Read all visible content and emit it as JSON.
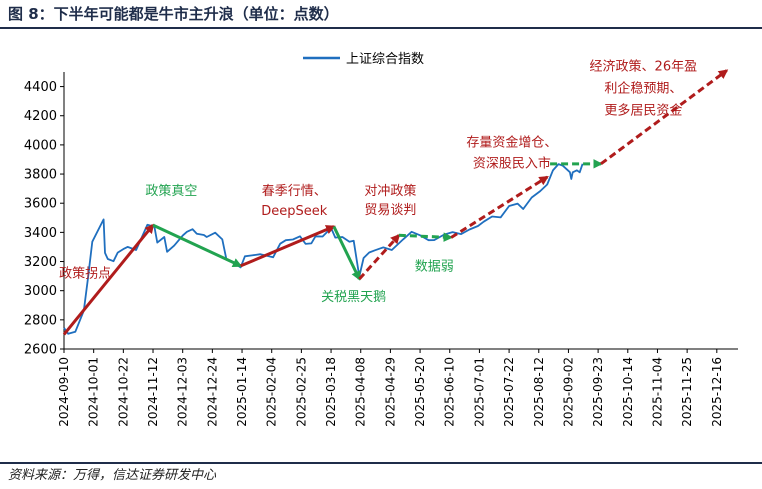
{
  "header": {
    "title": "图 8：下半年可能都是牛市主升浪（单位：点数）"
  },
  "footer": {
    "source": "资料来源：万得，信达证券研发中心"
  },
  "colors": {
    "line": "#1f6fbf",
    "red": "#b01c1c",
    "green": "#22a350",
    "text": "#000000",
    "navy": "#1f2d4a"
  },
  "chart_data": {
    "type": "line",
    "series": [
      {
        "name": "上证综合指数"
      }
    ],
    "legend_position": "top-center",
    "grid": false,
    "y_axis": {
      "ylim": [
        2600,
        4500
      ],
      "ticks": [
        2600,
        2800,
        3000,
        3200,
        3400,
        3600,
        3800,
        4000,
        4200,
        4400
      ]
    },
    "x_axis": {
      "ticks": [
        "2024-09-10",
        "2024-10-01",
        "2024-10-22",
        "2024-11-12",
        "2024-12-03",
        "2024-12-24",
        "2025-01-14",
        "2025-02-04",
        "2025-02-25",
        "2025-03-18",
        "2025-04-08",
        "2025-04-29",
        "2025-05-20",
        "2025-06-10",
        "2025-07-01",
        "2025-07-22",
        "2025-08-12",
        "2025-09-02",
        "2025-09-23",
        "2025-10-14",
        "2025-11-04",
        "2025-11-25",
        "2025-12-16"
      ]
    },
    "index_values": [
      [
        "2024-09-10",
        2745
      ],
      [
        "2024-09-13",
        2704
      ],
      [
        "2024-09-18",
        2718
      ],
      [
        "2024-09-24",
        2863
      ],
      [
        "2024-09-27",
        3087
      ],
      [
        "2024-09-30",
        3336
      ],
      [
        "2024-10-08",
        3489
      ],
      [
        "2024-10-09",
        3259
      ],
      [
        "2024-10-11",
        3217
      ],
      [
        "2024-10-15",
        3202
      ],
      [
        "2024-10-18",
        3261
      ],
      [
        "2024-10-22",
        3285
      ],
      [
        "2024-10-25",
        3300
      ],
      [
        "2024-10-31",
        3279
      ],
      [
        "2024-11-05",
        3386
      ],
      [
        "2024-11-08",
        3452
      ],
      [
        "2024-11-13",
        3439
      ],
      [
        "2024-11-15",
        3330
      ],
      [
        "2024-11-20",
        3368
      ],
      [
        "2024-11-22",
        3267
      ],
      [
        "2024-11-27",
        3309
      ],
      [
        "2024-12-03",
        3378
      ],
      [
        "2024-12-06",
        3404
      ],
      [
        "2024-12-10",
        3422
      ],
      [
        "2024-12-13",
        3391
      ],
      [
        "2024-12-18",
        3382
      ],
      [
        "2024-12-20",
        3368
      ],
      [
        "2024-12-26",
        3398
      ],
      [
        "2024-12-31",
        3352
      ],
      [
        "2025-01-03",
        3212
      ],
      [
        "2025-01-06",
        3206
      ],
      [
        "2025-01-13",
        3160
      ],
      [
        "2025-01-16",
        3236
      ],
      [
        "2025-01-21",
        3242
      ],
      [
        "2025-01-27",
        3250
      ],
      [
        "2025-02-05",
        3229
      ],
      [
        "2025-02-10",
        3322
      ],
      [
        "2025-02-14",
        3346
      ],
      [
        "2025-02-19",
        3351
      ],
      [
        "2025-02-24",
        3373
      ],
      [
        "2025-02-28",
        3321
      ],
      [
        "2025-03-04",
        3324
      ],
      [
        "2025-03-07",
        3373
      ],
      [
        "2025-03-12",
        3372
      ],
      [
        "2025-03-18",
        3430
      ],
      [
        "2025-03-21",
        3364
      ],
      [
        "2025-03-26",
        3368
      ],
      [
        "2025-03-31",
        3336
      ],
      [
        "2025-04-03",
        3342
      ],
      [
        "2025-04-07",
        3097
      ],
      [
        "2025-04-10",
        3224
      ],
      [
        "2025-04-14",
        3262
      ],
      [
        "2025-04-18",
        3277
      ],
      [
        "2025-04-24",
        3297
      ],
      [
        "2025-04-30",
        3279
      ],
      [
        "2025-05-08",
        3352
      ],
      [
        "2025-05-14",
        3404
      ],
      [
        "2025-05-20",
        3380
      ],
      [
        "2025-05-26",
        3346
      ],
      [
        "2025-05-30",
        3347
      ],
      [
        "2025-06-06",
        3385
      ],
      [
        "2025-06-12",
        3402
      ],
      [
        "2025-06-18",
        3388
      ],
      [
        "2025-06-24",
        3420
      ],
      [
        "2025-06-30",
        3444
      ],
      [
        "2025-07-04",
        3473
      ],
      [
        "2025-07-10",
        3509
      ],
      [
        "2025-07-16",
        3503
      ],
      [
        "2025-07-22",
        3581
      ],
      [
        "2025-07-28",
        3597
      ],
      [
        "2025-08-01",
        3560
      ],
      [
        "2025-08-07",
        3639
      ],
      [
        "2025-08-13",
        3683
      ],
      [
        "2025-08-18",
        3728
      ],
      [
        "2025-08-22",
        3825
      ],
      [
        "2025-08-26",
        3868
      ],
      [
        "2025-08-29",
        3857
      ],
      [
        "2025-09-03",
        3813
      ],
      [
        "2025-09-04",
        3766
      ],
      [
        "2025-09-05",
        3812
      ],
      [
        "2025-09-08",
        3826
      ],
      [
        "2025-09-10",
        3812
      ],
      [
        "2025-09-12",
        3870
      ]
    ],
    "trend_arrows": [
      {
        "color": "red",
        "from": [
          "2024-09-10",
          2700
        ],
        "to": [
          "2024-11-12",
          3450
        ]
      },
      {
        "color": "green",
        "from": [
          "2024-11-12",
          3450
        ],
        "to": [
          "2025-01-13",
          3170
        ]
      },
      {
        "color": "red",
        "from": [
          "2025-01-13",
          3170
        ],
        "to": [
          "2025-03-20",
          3440
        ]
      },
      {
        "color": "green",
        "from": [
          "2025-03-20",
          3440
        ],
        "to": [
          "2025-04-07",
          3080
        ]
      },
      {
        "color": "red",
        "from": [
          "2025-04-07",
          3080
        ],
        "to": [
          "2025-05-05",
          3380
        ],
        "dashed": true
      },
      {
        "color": "green",
        "from": [
          "2025-05-05",
          3380
        ],
        "to": [
          "2025-06-11",
          3365
        ],
        "dashed": true
      },
      {
        "color": "red",
        "from": [
          "2025-06-11",
          3365
        ],
        "to": [
          "2025-08-18",
          3780
        ],
        "dashed": true
      },
      {
        "color": "green",
        "from": [
          "2025-08-20",
          3870
        ],
        "to": [
          "2025-09-25",
          3870
        ],
        "dashed": true
      },
      {
        "color": "red",
        "from": [
          "2025-09-25",
          3870
        ],
        "to": [
          "2025-12-23",
          4510
        ],
        "dashed": true
      }
    ],
    "annotations": [
      {
        "text": "政策拐点",
        "color": "red",
        "at": [
          "2024-09-25",
          3090
        ]
      },
      {
        "text": "政策真空",
        "color": "green",
        "at": [
          "2024-11-25",
          3655
        ]
      },
      {
        "text": "春季行情、",
        "color": "red",
        "at": [
          "2025-02-20",
          3655
        ]
      },
      {
        "text": "DeepSeek",
        "color": "red",
        "at": [
          "2025-02-20",
          3520
        ]
      },
      {
        "text": "关税黑天鹅",
        "color": "green",
        "at": [
          "2025-04-03",
          2930
        ]
      },
      {
        "text": "对冲政策",
        "color": "red",
        "at": [
          "2025-04-29",
          3655
        ]
      },
      {
        "text": "贸易谈判",
        "color": "red",
        "at": [
          "2025-04-29",
          3525
        ]
      },
      {
        "text": "数据弱",
        "color": "green",
        "at": [
          "2025-05-30",
          3140
        ]
      },
      {
        "text": "存量资金增仓、",
        "color": "red",
        "at": [
          "2025-07-24",
          3990
        ]
      },
      {
        "text": "资深股民入市",
        "color": "red",
        "at": [
          "2025-07-24",
          3845
        ]
      },
      {
        "text": "经济政策、26年盈",
        "color": "red",
        "at": [
          "2025-10-25",
          4510
        ]
      },
      {
        "text": "利企稳预期、",
        "color": "red",
        "at": [
          "2025-10-25",
          4360
        ]
      },
      {
        "text": "更多居民资金",
        "color": "red",
        "at": [
          "2025-10-25",
          4210
        ]
      }
    ]
  }
}
